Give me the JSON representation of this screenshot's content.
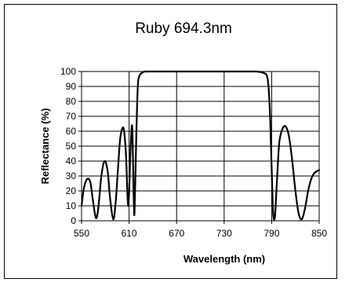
{
  "chart_data": {
    "type": "line",
    "title": "Ruby 694.3nm",
    "xlabel": "Wavelength (nm)",
    "ylabel": "Reflectance (%)",
    "xlim": [
      550,
      850
    ],
    "ylim": [
      0,
      100
    ],
    "x_ticks": [
      550,
      610,
      670,
      730,
      790,
      850
    ],
    "y_ticks": [
      0,
      10,
      20,
      30,
      40,
      50,
      60,
      70,
      80,
      90,
      100
    ],
    "x_tick_labels": [
      "550",
      "610",
      "670",
      "730",
      "790",
      "850"
    ],
    "y_tick_labels": [
      "0",
      "10",
      "20",
      "30",
      "40",
      "50",
      "60",
      "70",
      "80",
      "90",
      "100"
    ],
    "grid": true,
    "legend": "none",
    "series": [
      {
        "color": "#000000",
        "x": [
          550,
          553,
          557,
          561,
          564,
          568,
          571,
          575,
          579,
          583,
          586,
          590,
          593,
          596,
          599,
          603,
          606,
          609,
          612,
          614,
          616,
          617,
          619,
          621,
          623,
          626,
          630,
          640,
          660,
          700,
          740,
          770,
          780,
          784,
          786,
          788,
          790,
          792,
          794,
          796,
          798,
          800,
          804,
          808,
          812,
          816,
          820,
          824,
          828,
          832,
          836,
          840,
          844,
          850
        ],
        "y": [
          10,
          22,
          28,
          26,
          15,
          2,
          8,
          30,
          40,
          33,
          15,
          1,
          12,
          35,
          56,
          62,
          45,
          10,
          50,
          62,
          12,
          8,
          55,
          90,
          97,
          99,
          100,
          100,
          100,
          100,
          100,
          100,
          99,
          97,
          90,
          70,
          35,
          4,
          2,
          20,
          40,
          54,
          62,
          63,
          56,
          40,
          20,
          5,
          1,
          8,
          20,
          28,
          32,
          34
        ]
      }
    ]
  }
}
